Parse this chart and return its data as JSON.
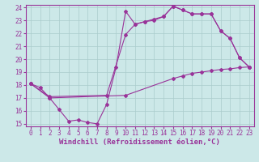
{
  "bg_color": "#cce8e8",
  "grid_color": "#aacccc",
  "line_color": "#993399",
  "xmin": 0,
  "xmax": 23,
  "ymin": 15,
  "ymax": 24,
  "xticks": [
    0,
    1,
    2,
    3,
    4,
    5,
    6,
    7,
    8,
    9,
    10,
    11,
    12,
    13,
    14,
    15,
    16,
    17,
    18,
    19,
    20,
    21,
    22,
    23
  ],
  "yticks": [
    15,
    16,
    17,
    18,
    19,
    20,
    21,
    22,
    23,
    24
  ],
  "line1_x": [
    0,
    1,
    2,
    3,
    4,
    5,
    6,
    7,
    8,
    9,
    10,
    11,
    12,
    13,
    14,
    15,
    16,
    17,
    18,
    19,
    20,
    21,
    22,
    23
  ],
  "line1_y": [
    18.1,
    17.8,
    17.0,
    16.1,
    15.2,
    15.3,
    15.1,
    15.0,
    16.5,
    19.4,
    23.7,
    22.7,
    22.9,
    23.0,
    23.3,
    24.1,
    23.8,
    23.5,
    23.5,
    23.5,
    22.2,
    21.6,
    20.1,
    19.4
  ],
  "line2_x": [
    0,
    2,
    8,
    10,
    11,
    12,
    13,
    14,
    15,
    16,
    17,
    18,
    19,
    20,
    21,
    22,
    23
  ],
  "line2_y": [
    18.1,
    17.1,
    17.2,
    21.9,
    22.7,
    22.9,
    23.1,
    23.3,
    24.1,
    23.8,
    23.5,
    23.5,
    23.5,
    22.2,
    21.6,
    20.1,
    19.4
  ],
  "line3_x": [
    0,
    2,
    10,
    15,
    16,
    17,
    18,
    19,
    20,
    21,
    22,
    23
  ],
  "line3_y": [
    18.1,
    17.0,
    17.2,
    18.5,
    18.7,
    18.9,
    19.0,
    19.1,
    19.2,
    19.25,
    19.35,
    19.4
  ],
  "xlabel": "Windchill (Refroidissement éolien,°C)",
  "tick_fontsize": 5.5,
  "xlabel_fontsize": 6.5
}
